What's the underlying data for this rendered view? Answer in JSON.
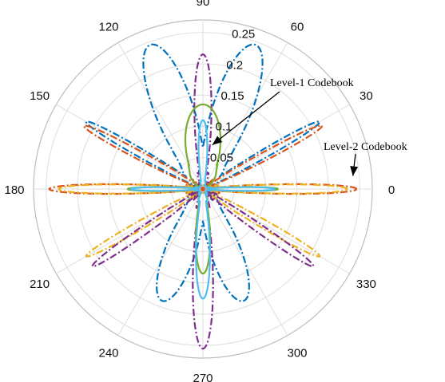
{
  "chart_data": {
    "type": "polar",
    "angle_tick_labels": [
      "0",
      "30",
      "60",
      "90",
      "120",
      "150",
      "180",
      "210",
      "240",
      "270",
      "300",
      "330"
    ],
    "radial_tick_labels": [
      "0.05",
      "0.1",
      "0.15",
      "0.2",
      "0.25"
    ],
    "radial_ticks": [
      0.05,
      0.1,
      0.15,
      0.2,
      0.25
    ],
    "rlim": [
      0,
      0.27
    ],
    "grid": true,
    "annotations": [
      {
        "text": "Level-1 Codebook",
        "points_to": {
          "theta_deg": 78,
          "r": 0.072
        }
      },
      {
        "text": "Level-2 Codebook",
        "points_to": {
          "theta_deg": 5,
          "r": 0.24
        }
      }
    ],
    "series": [
      {
        "color": "#0072BD",
        "style": "dashdot",
        "lobes": [
          {
            "center_deg": 70,
            "peak": 0.245,
            "width_deg": 12
          },
          {
            "center_deg": 110,
            "peak": 0.245,
            "width_deg": 12
          },
          {
            "center_deg": 250,
            "peak": 0.19,
            "width_deg": 12
          },
          {
            "center_deg": 290,
            "peak": 0.19,
            "width_deg": 12
          },
          {
            "center_deg": 30,
            "peak": 0.215,
            "width_deg": 3
          },
          {
            "center_deg": 150,
            "peak": 0.215,
            "width_deg": 3
          }
        ]
      },
      {
        "color": "#D95319",
        "style": "dashdot",
        "lobes": [
          {
            "center_deg": 0,
            "peak": 0.245,
            "width_deg": 3
          },
          {
            "center_deg": 180,
            "peak": 0.245,
            "width_deg": 3
          },
          {
            "center_deg": 28,
            "peak": 0.215,
            "width_deg": 3
          },
          {
            "center_deg": 152,
            "peak": 0.215,
            "width_deg": 3
          }
        ]
      },
      {
        "color": "#EDB120",
        "style": "dashdot",
        "lobes": [
          {
            "center_deg": 0,
            "peak": 0.23,
            "width_deg": 3
          },
          {
            "center_deg": 180,
            "peak": 0.23,
            "width_deg": 3
          },
          {
            "center_deg": 330,
            "peak": 0.215,
            "width_deg": 3
          },
          {
            "center_deg": 210,
            "peak": 0.215,
            "width_deg": 3
          }
        ]
      },
      {
        "color": "#7E2F8E",
        "style": "dashdot",
        "lobes": [
          {
            "center_deg": 90,
            "peak": 0.215,
            "width_deg": 6
          },
          {
            "center_deg": 270,
            "peak": 0.255,
            "width_deg": 6
          },
          {
            "center_deg": 325,
            "peak": 0.215,
            "width_deg": 3
          },
          {
            "center_deg": 215,
            "peak": 0.215,
            "width_deg": 3
          }
        ]
      },
      {
        "color": "#77AC30",
        "style": "solid",
        "lobes": [
          {
            "center_deg": 90,
            "peak": 0.135,
            "width_deg": 20
          },
          {
            "center_deg": 270,
            "peak": 0.135,
            "width_deg": 8
          },
          {
            "center_deg": 0,
            "peak": 0.12,
            "width_deg": 2.5
          },
          {
            "center_deg": 180,
            "peak": 0.12,
            "width_deg": 2.5
          }
        ]
      },
      {
        "color": "#4DBEEE",
        "style": "solid",
        "lobes": [
          {
            "center_deg": 90,
            "peak": 0.11,
            "width_deg": 6
          },
          {
            "center_deg": 270,
            "peak": 0.175,
            "width_deg": 6
          },
          {
            "center_deg": 0,
            "peak": 0.115,
            "width_deg": 2.5
          },
          {
            "center_deg": 180,
            "peak": 0.115,
            "width_deg": 2.5
          }
        ]
      }
    ]
  }
}
